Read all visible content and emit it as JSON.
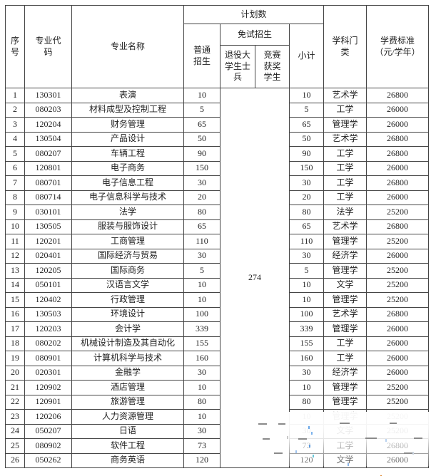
{
  "table": {
    "header": {
      "seq": "序\n号",
      "code": "专业代\n码",
      "name": "专业名称",
      "plan": "计划数",
      "general": "普通\n招生",
      "exam_free": "免试招生",
      "veteran_soldier": "退役大\n学生士\n兵",
      "competition_winner": "竞赛\n获奖\n学生",
      "subtotal": "小计",
      "discipline": "学科门\n类",
      "tuition": "学费标准\n（元/学年）"
    },
    "exam_free_total": "274",
    "rows": [
      {
        "seq": "1",
        "code": "130301",
        "name": "表演",
        "general": "10",
        "subtotal": "10",
        "discipline": "艺术学",
        "tuition": "26800"
      },
      {
        "seq": "2",
        "code": "080203",
        "name": "材料成型及控制工程",
        "general": "5",
        "subtotal": "5",
        "discipline": "工学",
        "tuition": "26000"
      },
      {
        "seq": "3",
        "code": "120204",
        "name": "财务管理",
        "general": "65",
        "subtotal": "65",
        "discipline": "管理学",
        "tuition": "26000"
      },
      {
        "seq": "4",
        "code": "130504",
        "name": "产品设计",
        "general": "50",
        "subtotal": "50",
        "discipline": "艺术学",
        "tuition": "26800"
      },
      {
        "seq": "5",
        "code": "080207",
        "name": "车辆工程",
        "general": "90",
        "subtotal": "90",
        "discipline": "工学",
        "tuition": "26800"
      },
      {
        "seq": "6",
        "code": "120801",
        "name": "电子商务",
        "general": "150",
        "subtotal": "150",
        "discipline": "工学",
        "tuition": "26000"
      },
      {
        "seq": "7",
        "code": "080701",
        "name": "电子信息工程",
        "general": "30",
        "subtotal": "30",
        "discipline": "工学",
        "tuition": "26800"
      },
      {
        "seq": "8",
        "code": "080714",
        "name": "电子信息科学与技术",
        "general": "20",
        "subtotal": "20",
        "discipline": "工学",
        "tuition": "26000"
      },
      {
        "seq": "9",
        "code": "030101",
        "name": "法学",
        "general": "80",
        "subtotal": "80",
        "discipline": "法学",
        "tuition": "25200"
      },
      {
        "seq": "10",
        "code": "130505",
        "name": "服装与服饰设计",
        "general": "65",
        "subtotal": "65",
        "discipline": "艺术学",
        "tuition": "26800"
      },
      {
        "seq": "11",
        "code": "120201",
        "name": "工商管理",
        "general": "110",
        "subtotal": "110",
        "discipline": "管理学",
        "tuition": "25200"
      },
      {
        "seq": "12",
        "code": "020401",
        "name": "国际经济与贸易",
        "general": "30",
        "subtotal": "30",
        "discipline": "经济学",
        "tuition": "26000"
      },
      {
        "seq": "13",
        "code": "120205",
        "name": "国际商务",
        "general": "5",
        "subtotal": "5",
        "discipline": "管理学",
        "tuition": "25200"
      },
      {
        "seq": "14",
        "code": "050101",
        "name": "汉语言文学",
        "general": "10",
        "subtotal": "10",
        "discipline": "文学",
        "tuition": "25200"
      },
      {
        "seq": "15",
        "code": "120402",
        "name": "行政管理",
        "general": "10",
        "subtotal": "10",
        "discipline": "管理学",
        "tuition": "25200"
      },
      {
        "seq": "16",
        "code": "130503",
        "name": "环境设计",
        "general": "100",
        "subtotal": "100",
        "discipline": "艺术学",
        "tuition": "26800"
      },
      {
        "seq": "17",
        "code": "120203",
        "name": "会计学",
        "general": "339",
        "subtotal": "339",
        "discipline": "管理学",
        "tuition": "26000"
      },
      {
        "seq": "18",
        "code": "080202",
        "name": "机械设计制造及其自动化",
        "general": "155",
        "subtotal": "155",
        "discipline": "工学",
        "tuition": "26000"
      },
      {
        "seq": "19",
        "code": "080901",
        "name": "计算机科学与技术",
        "general": "160",
        "subtotal": "160",
        "discipline": "工学",
        "tuition": "26000"
      },
      {
        "seq": "20",
        "code": "020301",
        "name": "金融学",
        "general": "30",
        "subtotal": "30",
        "discipline": "经济学",
        "tuition": "26000"
      },
      {
        "seq": "21",
        "code": "120902",
        "name": "酒店管理",
        "general": "10",
        "subtotal": "10",
        "discipline": "管理学",
        "tuition": "25200"
      },
      {
        "seq": "22",
        "code": "120901",
        "name": "旅游管理",
        "general": "80",
        "subtotal": "80",
        "discipline": "管理学",
        "tuition": "25200"
      },
      {
        "seq": "23",
        "code": "120206",
        "name": "人力资源管理",
        "general": "10",
        "subtotal": "10",
        "discipline": "管理学",
        "tuition": "25200"
      },
      {
        "seq": "24",
        "code": "050207",
        "name": "日语",
        "general": "30",
        "subtotal": "30",
        "discipline": "文学",
        "tuition": "25200"
      },
      {
        "seq": "25",
        "code": "080902",
        "name": "软件工程",
        "general": "73",
        "subtotal": "73",
        "discipline": "工学",
        "tuition": "26800"
      },
      {
        "seq": "26",
        "code": "050262",
        "name": "商务英语",
        "general": "120",
        "subtotal": "120",
        "discipline": "文学",
        "tuition": "26000"
      }
    ]
  }
}
